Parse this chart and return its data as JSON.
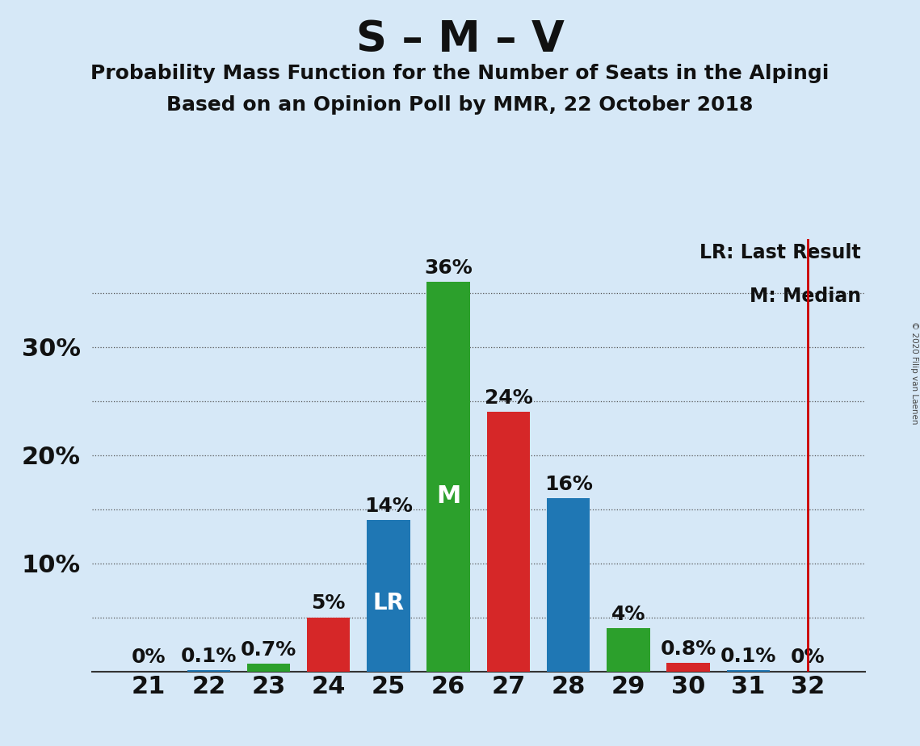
{
  "title": "S – M – V",
  "subtitle1": "Probability Mass Function for the Number of Seats in the Alpingi",
  "subtitle2": "Based on an Opinion Poll by MMR, 22 October 2018",
  "copyright": "© 2020 Filip van Laenen",
  "seats": [
    21,
    22,
    23,
    24,
    25,
    26,
    27,
    28,
    29,
    30,
    31,
    32
  ],
  "probabilities": [
    0.0,
    0.1,
    0.7,
    5.0,
    14.0,
    36.0,
    24.0,
    16.0,
    4.0,
    0.8,
    0.1,
    0.0
  ],
  "bar_colors": [
    "#1f77b4",
    "#1f77b4",
    "#2ca02c",
    "#d62728",
    "#1f77b4",
    "#2ca02c",
    "#d62728",
    "#1f77b4",
    "#2ca02c",
    "#d62728",
    "#1f77b4",
    "#1f77b4"
  ],
  "median_seat": 26,
  "last_result_seat": 32,
  "background_color": "#d6e8f7",
  "gridline_color": "#555555",
  "bar_width": 0.72,
  "ylim": [
    0,
    40
  ],
  "ytick_vals": [
    10,
    20,
    30
  ],
  "ytick_labels": [
    "10%",
    "20%",
    "30%"
  ],
  "grid_yticks": [
    5,
    10,
    15,
    20,
    25,
    30,
    35
  ],
  "bar_label_fontsize": 18,
  "title_fontsize": 38,
  "subtitle_fontsize": 18,
  "tick_fontsize": 22,
  "legend_fontsize": 17,
  "median_label": "M",
  "lr_label": "LR",
  "lr_line_color": "#cc0000",
  "inside_label_color": "#ffffff"
}
